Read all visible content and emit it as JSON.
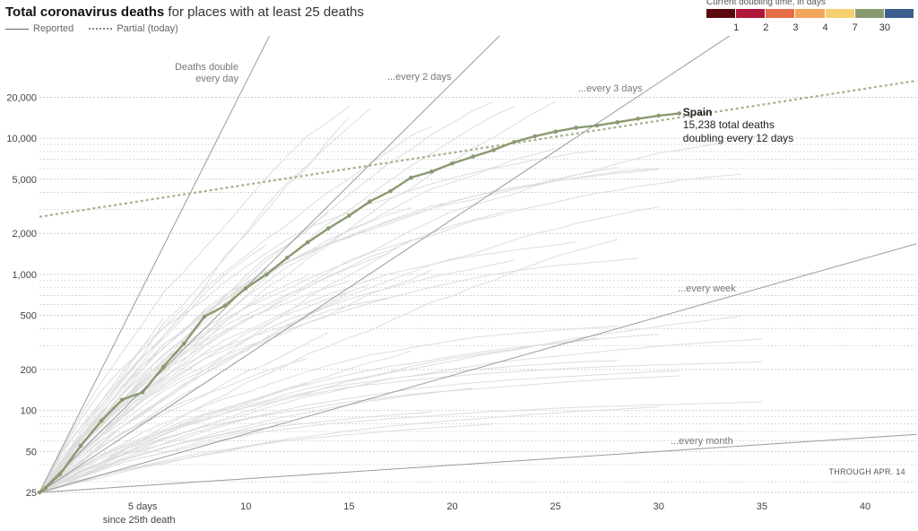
{
  "header": {
    "title_bold": "Total coronavirus deaths",
    "title_rest": " for places with at least 25 deaths",
    "legend_reported": "Reported",
    "legend_partial": "Partial (today)"
  },
  "doubling_legend": {
    "title": "Current doubling time, in days",
    "colors": [
      "#5a0a0e",
      "#b0173a",
      "#e66d4a",
      "#f2a65a",
      "#f6d06e",
      "#8a9a70",
      "#3b5f8e"
    ],
    "labels": [
      "1",
      "2",
      "3",
      "4",
      "7",
      "30"
    ]
  },
  "through_label": "THROUGH APR. 14",
  "chart_data": {
    "type": "line",
    "title": "Total coronavirus deaths for places with at least 25 deaths",
    "xlabel": "since 25th death",
    "ylabel": "",
    "scale_y": "log",
    "xlim": [
      0,
      42.5
    ],
    "ylim": [
      25,
      30000
    ],
    "x_ticks": [
      {
        "value": 5,
        "label": "5 days"
      },
      {
        "value": 10,
        "label": "10"
      },
      {
        "value": 15,
        "label": "15"
      },
      {
        "value": 20,
        "label": "20"
      },
      {
        "value": 25,
        "label": "25"
      },
      {
        "value": 30,
        "label": "30"
      },
      {
        "value": 35,
        "label": "35"
      },
      {
        "value": 40,
        "label": "40"
      }
    ],
    "y_ticks": [
      {
        "value": 25,
        "label": "25"
      },
      {
        "value": 50,
        "label": "50"
      },
      {
        "value": 100,
        "label": "100"
      },
      {
        "value": 200,
        "label": "200"
      },
      {
        "value": 500,
        "label": "500"
      },
      {
        "value": 1000,
        "label": "1,000"
      },
      {
        "value": 2000,
        "label": "2,000"
      },
      {
        "value": 5000,
        "label": "5,000"
      },
      {
        "value": 10000,
        "label": "10,000"
      },
      {
        "value": 20000,
        "label": "20,000"
      }
    ],
    "y_minor_gridlines": [
      30,
      40,
      60,
      70,
      80,
      90,
      300,
      400,
      600,
      700,
      800,
      900,
      3000,
      4000,
      6000,
      7000,
      8000,
      9000
    ],
    "reference_lines": [
      {
        "label": "Deaths double\nevery day",
        "doubling_days": 1
      },
      {
        "label": "...every 2 days",
        "doubling_days": 2
      },
      {
        "label": "...every 3 days",
        "doubling_days": 3
      },
      {
        "label": "...every week",
        "doubling_days": 7
      },
      {
        "label": "...every month",
        "doubling_days": 30
      }
    ],
    "highlight": {
      "name": "Spain",
      "annotation": [
        "15,238 total deaths",
        "doubling every 12 days"
      ],
      "color": "#8a9a70",
      "x": [
        0,
        0.3,
        1,
        2,
        3,
        4,
        5,
        6,
        7,
        8,
        9,
        10,
        11,
        12,
        13,
        14,
        15,
        16,
        17,
        18,
        19,
        20,
        21,
        22,
        23,
        24,
        25,
        26,
        27,
        28,
        29,
        30,
        31
      ],
      "y": [
        25,
        27,
        34,
        55,
        84,
        120,
        136,
        209,
        310,
        490,
        590,
        790,
        1000,
        1325,
        1720,
        2180,
        2700,
        3430,
        4090,
        5140,
        5690,
        6530,
        7340,
        8190,
        9390,
        10350,
        11200,
        11950,
        12420,
        13110,
        13910,
        14670,
        15238
      ],
      "partial": {
        "x": [
          0,
          42.5
        ],
        "y": [
          2650,
          26500
        ]
      }
    },
    "background_series_color": "#dddddd"
  }
}
